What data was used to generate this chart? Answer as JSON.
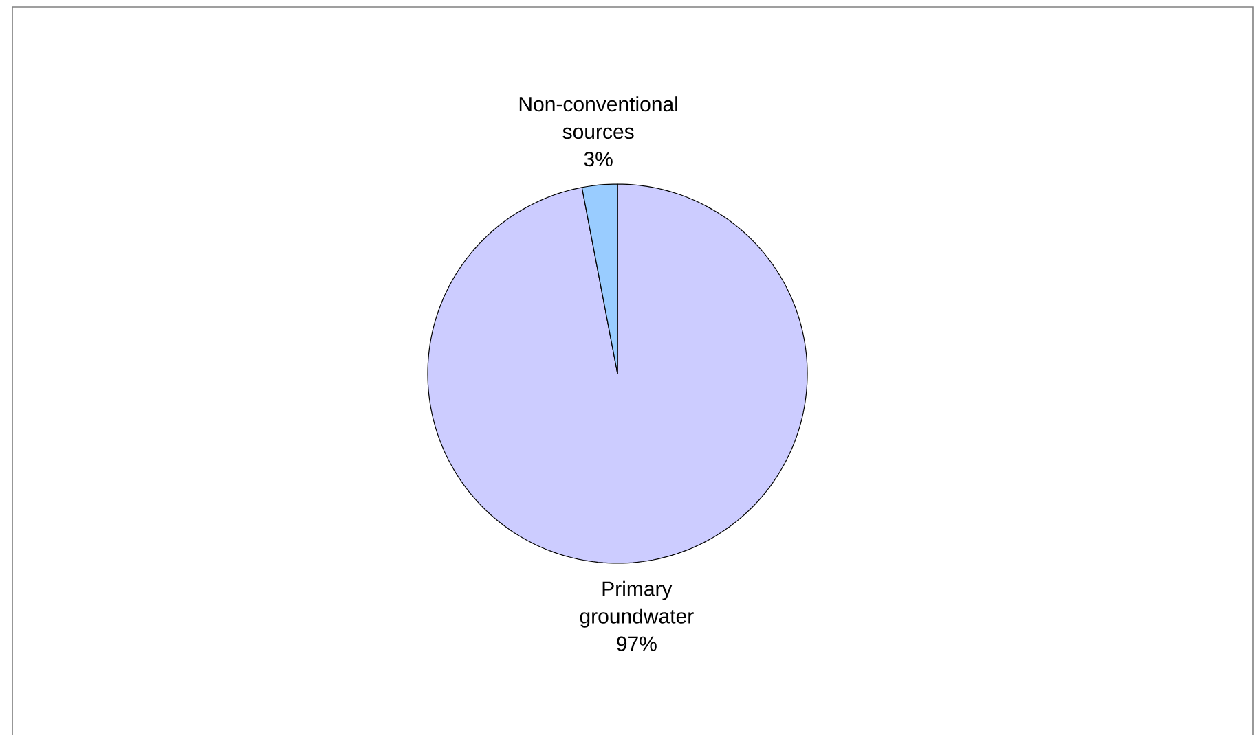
{
  "chart_data": {
    "type": "pie",
    "categories": [
      "Primary groundwater",
      "Non-conventional sources"
    ],
    "values": [
      97,
      3
    ],
    "colors": [
      "#ccccff",
      "#99ccff"
    ],
    "value_labels": [
      "97%",
      "3%"
    ]
  }
}
